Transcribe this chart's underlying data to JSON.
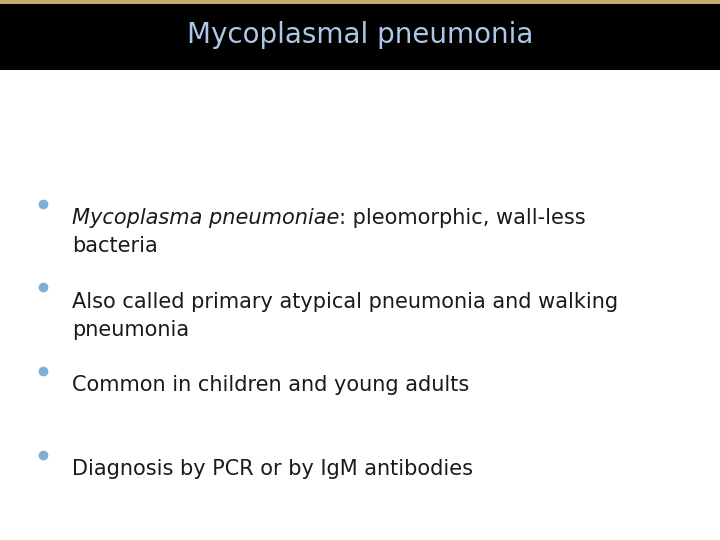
{
  "title": "Mycoplasmal pneumonia",
  "title_color": "#aec6e8",
  "title_bg_color": "#000000",
  "title_bar_color": "#c8a96e",
  "background_color": "#ffffff",
  "bullet_color": "#7bafd4",
  "bullet_points": [
    {
      "italic_part": "Mycoplasma pneumoniae",
      "normal_part": ": pleomorphic, wall-less",
      "second_line": "bacteria",
      "has_italic": true
    },
    {
      "italic_part": "",
      "normal_part": "Also called primary atypical pneumonia and walking",
      "second_line": "pneumonia",
      "has_italic": false
    },
    {
      "italic_part": "",
      "normal_part": "Common in children and young adults",
      "second_line": "",
      "has_italic": false
    },
    {
      "italic_part": "",
      "normal_part": "Diagnosis by PCR or by IgM antibodies",
      "second_line": "",
      "has_italic": false
    }
  ],
  "font_size_title": 20,
  "font_size_body": 15,
  "figsize": [
    7.2,
    5.4
  ],
  "dpi": 100
}
